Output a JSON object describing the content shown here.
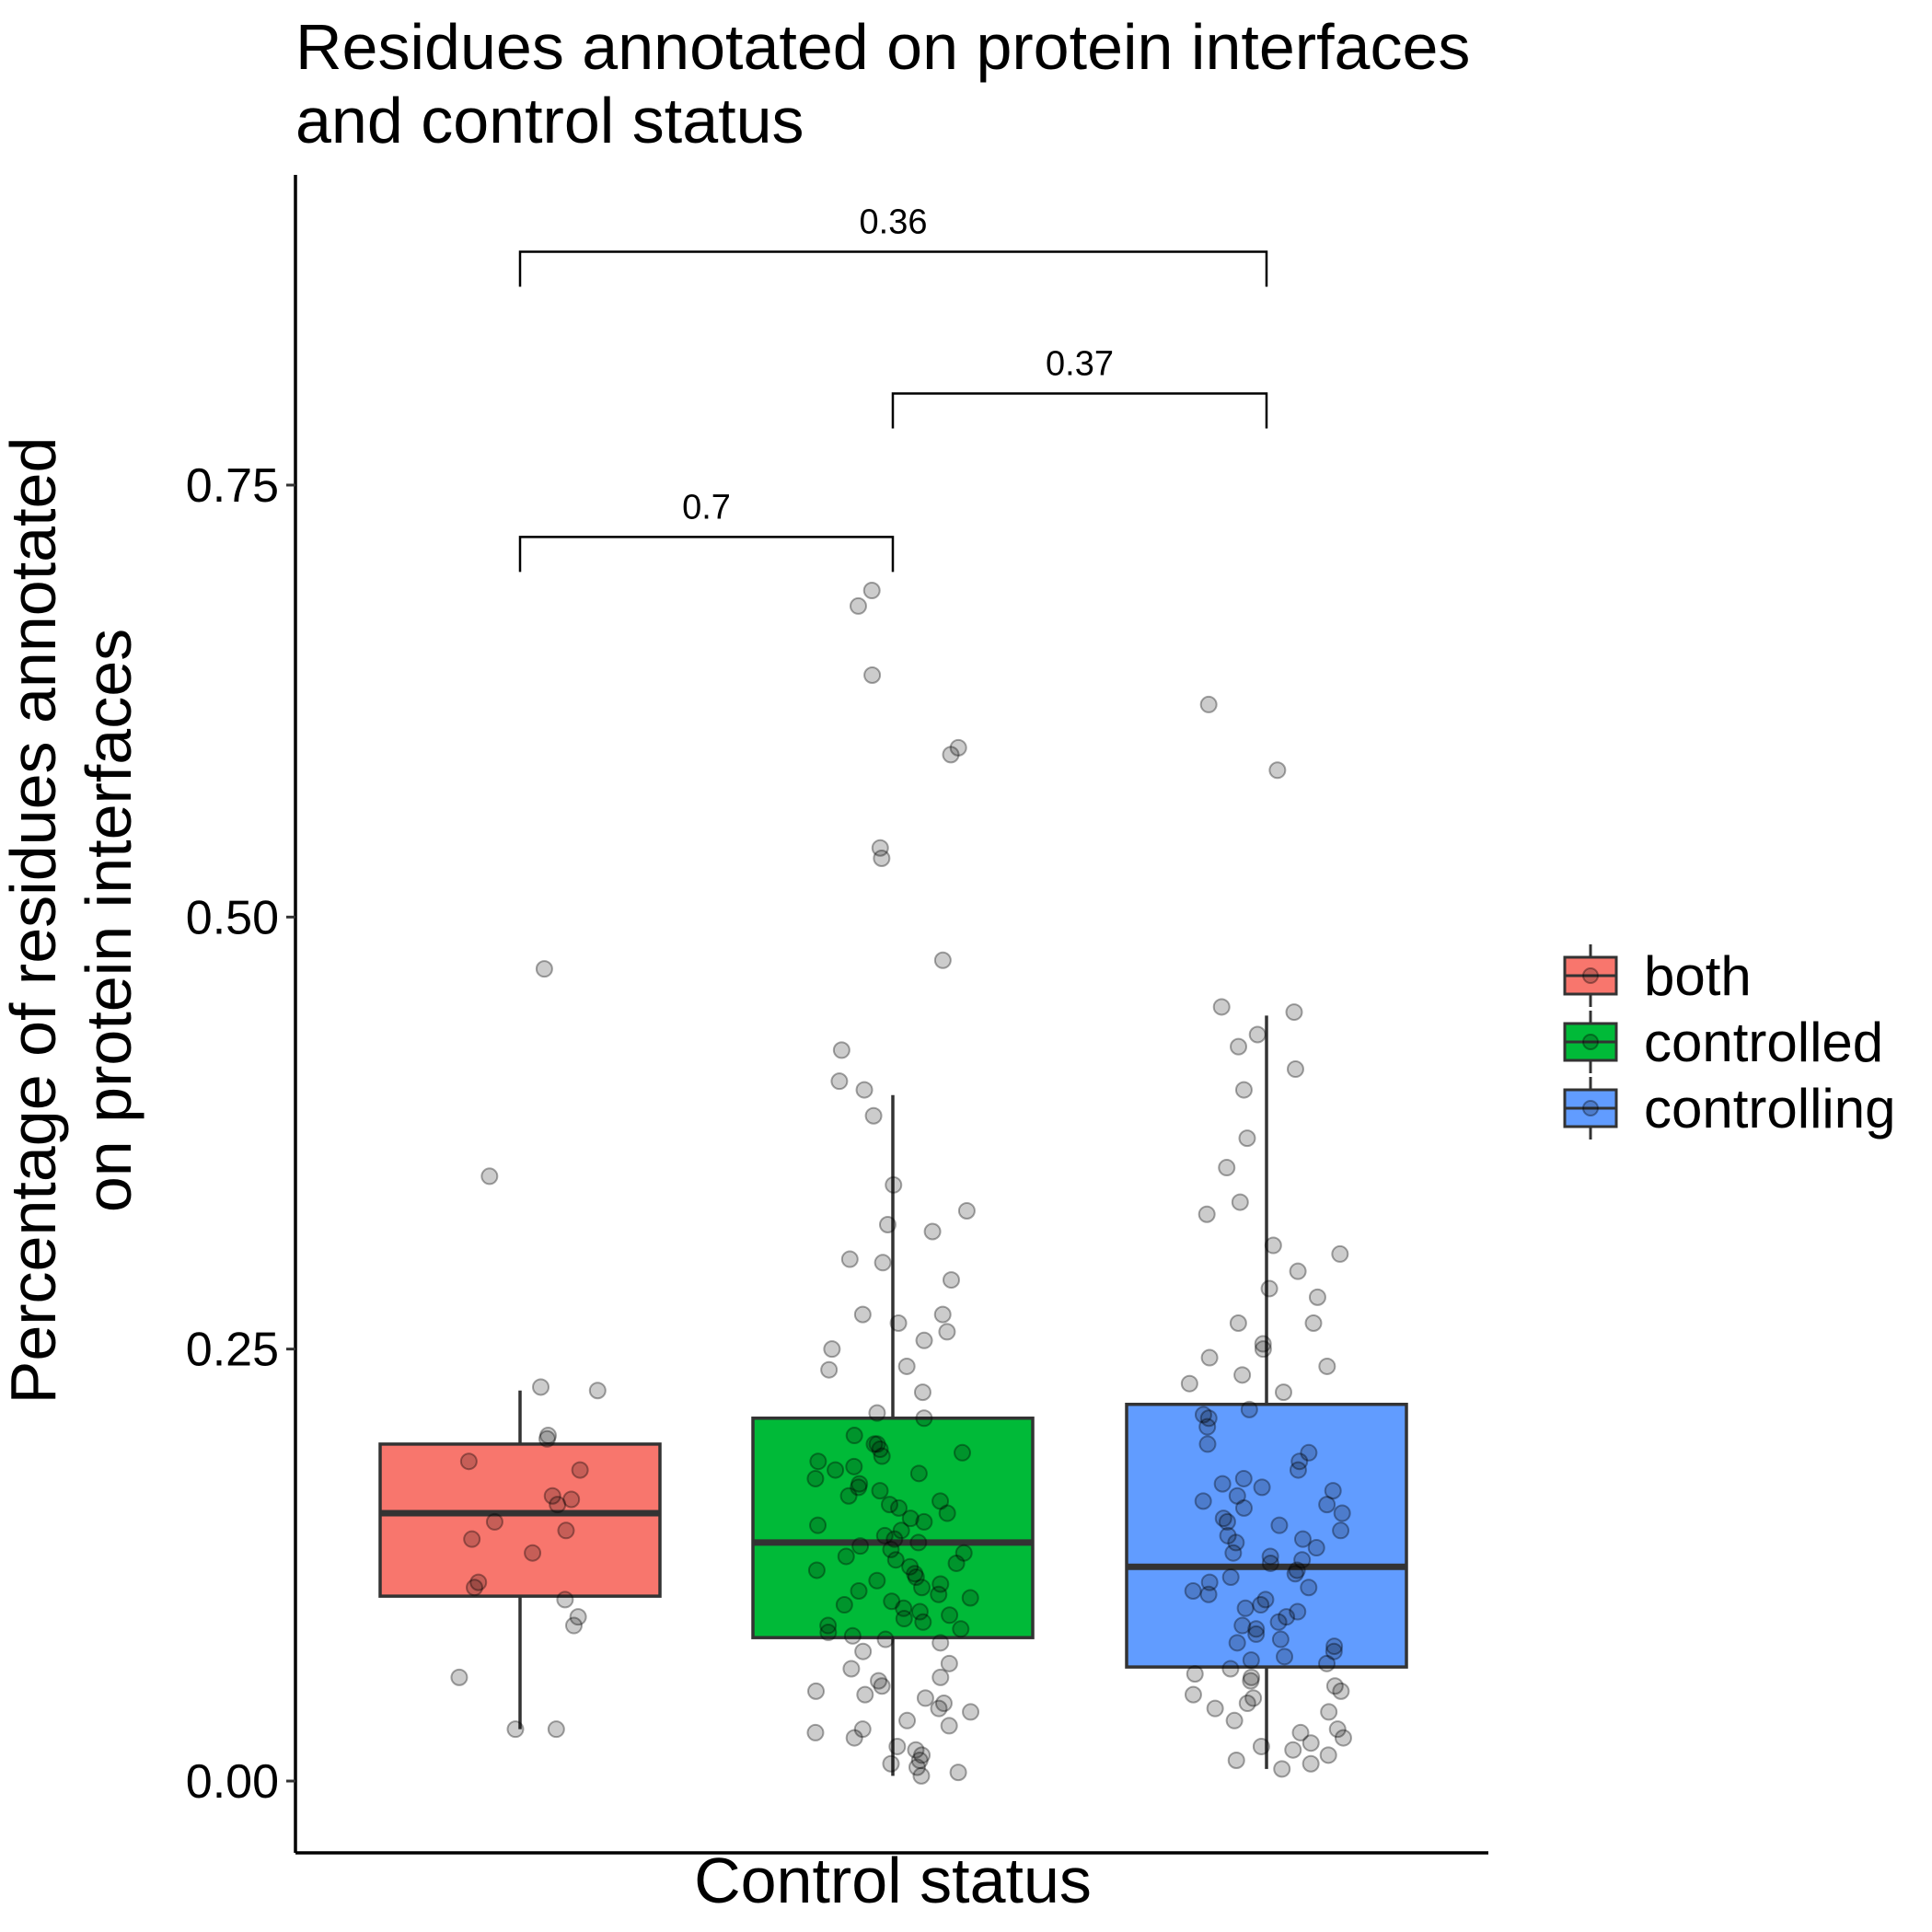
{
  "chart_data": {
    "type": "box",
    "title_lines": [
      "Residues annotated on protein interfaces",
      "and control status"
    ],
    "xlabel": "Control status",
    "ylabel_lines": [
      "Percentage of residues annotated",
      "on protein interfaces"
    ],
    "ylim": [
      -0.04,
      0.93
    ],
    "yticks": [
      0.0,
      0.25,
      0.5,
      0.75
    ],
    "ytick_labels": [
      "0.00",
      "0.25",
      "0.50",
      "0.75"
    ],
    "grid": false,
    "legend_position": "right",
    "legend_title": "",
    "groups": [
      {
        "name": "both",
        "color": "#F8766D",
        "box": {
          "whisker_low": 0.03,
          "q1": 0.107,
          "median": 0.155,
          "q3": 0.195,
          "whisker_high": 0.226
        },
        "points": [
          0.47,
          0.35,
          0.228,
          0.226,
          0.2,
          0.198,
          0.185,
          0.18,
          0.165,
          0.163,
          0.16,
          0.15,
          0.145,
          0.14,
          0.132,
          0.115,
          0.112,
          0.105,
          0.095,
          0.09,
          0.06,
          0.03,
          0.03
        ]
      },
      {
        "name": "controlled",
        "color": "#00BA38",
        "box": {
          "whisker_low": 0.003,
          "q1": 0.083,
          "median": 0.138,
          "q3": 0.21,
          "whisker_high": 0.397
        },
        "points": [
          0.689,
          0.68,
          0.64,
          0.598,
          0.594,
          0.54,
          0.534,
          0.475,
          0.423,
          0.405,
          0.4,
          0.385,
          0.345,
          0.33,
          0.322,
          0.318,
          0.302,
          0.3,
          0.29,
          0.27,
          0.27,
          0.265,
          0.26,
          0.255,
          0.25,
          0.24,
          0.238,
          0.225,
          0.213,
          0.21,
          0.2,
          0.195,
          0.195,
          0.192,
          0.19,
          0.188,
          0.185,
          0.182,
          0.18,
          0.178,
          0.175,
          0.172,
          0.17,
          0.168,
          0.165,
          0.162,
          0.16,
          0.158,
          0.155,
          0.152,
          0.15,
          0.148,
          0.145,
          0.142,
          0.14,
          0.138,
          0.136,
          0.134,
          0.132,
          0.13,
          0.128,
          0.126,
          0.124,
          0.122,
          0.12,
          0.118,
          0.116,
          0.114,
          0.112,
          0.11,
          0.108,
          0.106,
          0.104,
          0.102,
          0.1,
          0.098,
          0.096,
          0.094,
          0.092,
          0.09,
          0.088,
          0.086,
          0.084,
          0.082,
          0.08,
          0.075,
          0.068,
          0.065,
          0.06,
          0.058,
          0.055,
          0.052,
          0.05,
          0.048,
          0.045,
          0.042,
          0.04,
          0.035,
          0.032,
          0.03,
          0.028,
          0.025,
          0.02,
          0.018,
          0.015,
          0.012,
          0.01,
          0.008,
          0.005,
          0.003
        ]
      },
      {
        "name": "controlling",
        "color": "#619CFF",
        "box": {
          "whisker_low": 0.007,
          "q1": 0.066,
          "median": 0.124,
          "q3": 0.218,
          "whisker_high": 0.443
        },
        "points": [
          0.623,
          0.585,
          0.448,
          0.445,
          0.432,
          0.425,
          0.412,
          0.4,
          0.372,
          0.355,
          0.335,
          0.328,
          0.31,
          0.305,
          0.295,
          0.285,
          0.28,
          0.265,
          0.265,
          0.253,
          0.25,
          0.245,
          0.24,
          0.235,
          0.23,
          0.225,
          0.215,
          0.212,
          0.21,
          0.205,
          0.195,
          0.19,
          0.185,
          0.18,
          0.175,
          0.172,
          0.17,
          0.168,
          0.165,
          0.162,
          0.16,
          0.158,
          0.155,
          0.152,
          0.15,
          0.148,
          0.145,
          0.142,
          0.14,
          0.138,
          0.135,
          0.132,
          0.13,
          0.128,
          0.126,
          0.122,
          0.12,
          0.118,
          0.115,
          0.112,
          0.11,
          0.108,
          0.105,
          0.102,
          0.1,
          0.098,
          0.095,
          0.092,
          0.09,
          0.088,
          0.085,
          0.082,
          0.08,
          0.078,
          0.075,
          0.072,
          0.07,
          0.068,
          0.065,
          0.062,
          0.06,
          0.058,
          0.055,
          0.052,
          0.05,
          0.048,
          0.045,
          0.042,
          0.04,
          0.035,
          0.03,
          0.028,
          0.025,
          0.022,
          0.02,
          0.018,
          0.015,
          0.012,
          0.01,
          0.007
        ]
      }
    ],
    "comparisons": [
      {
        "from": 0,
        "to": 1,
        "y": 0.72,
        "label": "0.7"
      },
      {
        "from": 1,
        "to": 2,
        "y": 0.803,
        "label": "0.37"
      },
      {
        "from": 0,
        "to": 2,
        "y": 0.885,
        "label": "0.36"
      }
    ]
  }
}
